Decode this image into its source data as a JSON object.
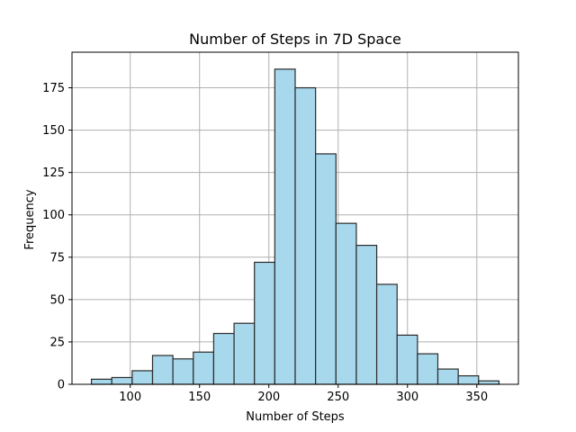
{
  "chart_data": {
    "type": "bar",
    "title": "Number of Steps in 7D Space",
    "xlabel": "Number of Steps",
    "ylabel": "Frequency",
    "xlim": [
      58,
      380
    ],
    "ylim": [
      0,
      196
    ],
    "xticks": [
      100,
      150,
      200,
      250,
      300,
      350
    ],
    "yticks": [
      0,
      25,
      50,
      75,
      100,
      125,
      150,
      175
    ],
    "grid": true,
    "bar_color": "#a8d8ec",
    "edge_color": "#2b2b2b",
    "bins": [
      {
        "x0": 72,
        "x1": 86.7,
        "count": 3
      },
      {
        "x0": 86.7,
        "x1": 101.4,
        "count": 4
      },
      {
        "x0": 101.4,
        "x1": 116.1,
        "count": 8
      },
      {
        "x0": 116.1,
        "x1": 130.8,
        "count": 17
      },
      {
        "x0": 130.8,
        "x1": 145.5,
        "count": 15
      },
      {
        "x0": 145.5,
        "x1": 160.2,
        "count": 19
      },
      {
        "x0": 160.2,
        "x1": 174.9,
        "count": 30
      },
      {
        "x0": 174.9,
        "x1": 189.6,
        "count": 36
      },
      {
        "x0": 189.6,
        "x1": 204.3,
        "count": 72
      },
      {
        "x0": 204.3,
        "x1": 219.0,
        "count": 186
      },
      {
        "x0": 219.0,
        "x1": 233.7,
        "count": 175
      },
      {
        "x0": 233.7,
        "x1": 248.4,
        "count": 136
      },
      {
        "x0": 248.4,
        "x1": 263.1,
        "count": 95
      },
      {
        "x0": 263.1,
        "x1": 277.8,
        "count": 82
      },
      {
        "x0": 277.8,
        "x1": 292.5,
        "count": 59
      },
      {
        "x0": 292.5,
        "x1": 307.2,
        "count": 29
      },
      {
        "x0": 307.2,
        "x1": 321.9,
        "count": 18
      },
      {
        "x0": 321.9,
        "x1": 336.6,
        "count": 9
      },
      {
        "x0": 336.6,
        "x1": 351.3,
        "count": 5
      },
      {
        "x0": 351.3,
        "x1": 366.0,
        "count": 2
      }
    ]
  }
}
